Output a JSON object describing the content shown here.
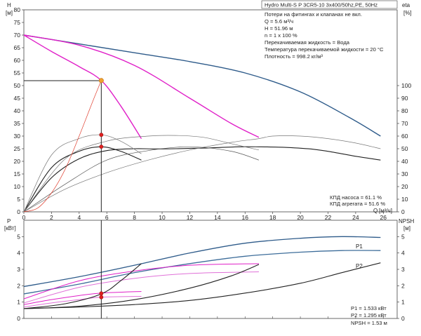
{
  "chart_data": [
    {
      "type": "line",
      "title": "Hydro Multi-S P 3CR5-10 3x400/50hz,PE, 50Hz",
      "xlabel": "Q",
      "xunit": "[м³/ч]",
      "ylabel": "H",
      "yunit": "[м]",
      "y2label": "eta",
      "y2unit": "[%]",
      "xlim": [
        0,
        27
      ],
      "ylim": [
        0,
        80
      ],
      "y2lim": [
        0,
        160
      ],
      "xticks": [
        0,
        2,
        4,
        6,
        8,
        10,
        12,
        14,
        16,
        18,
        20,
        22,
        24,
        26
      ],
      "xtick_labels": [
        "0",
        "2",
        "4",
        "6",
        "8",
        "10",
        "12",
        "14",
        "16",
        "18",
        "20",
        "22",
        "24",
        "26"
      ],
      "yticks": [
        0,
        5,
        10,
        15,
        20,
        25,
        30,
        35,
        40,
        45,
        50,
        55,
        60,
        65,
        70,
        75,
        80
      ],
      "ytick_labels": [
        "0",
        "5",
        "10",
        "15",
        "20",
        "25",
        "30",
        "35",
        "40",
        "45",
        "50",
        "55",
        "60",
        "65",
        "70",
        "75",
        "80"
      ],
      "y2ticks": [
        0,
        10,
        20,
        30,
        40,
        50,
        60,
        70,
        80,
        90,
        100
      ],
      "y2tick_labels": [
        "0",
        "10",
        "20",
        "30",
        "40",
        "50",
        "60",
        "70",
        "80",
        "90",
        "100"
      ],
      "grid": false,
      "info_lines": [
        "Потери на фитингах и клапанах не вкл.",
        "Q = 5.6 м³/ч",
        "H = 51.96 м",
        "n = 1 x 100 %",
        "Перекачиваемая жидкость = Вода",
        "Температура перекачиваемой жидкости = 20 °C",
        "Плотность = 998.2 кг/м³"
      ],
      "efficiency_labels": [
        "КПД насоса = 61.1 %",
        "КПД агрегата = 51.6 %"
      ],
      "series": [
        {
          "role": "head",
          "color": "#2e5b8a",
          "x": [
            0,
            4,
            8,
            12,
            16,
            20,
            23.5,
            25.8
          ],
          "y": [
            70,
            66.5,
            63,
            59.5,
            55,
            47.5,
            37.5,
            30
          ]
        },
        {
          "role": "head",
          "color": "#e020c8",
          "x": [
            0,
            4,
            8,
            12,
            15,
            17
          ],
          "y": [
            70,
            66,
            58,
            45,
            35,
            29.5
          ]
        },
        {
          "role": "head",
          "color": "#e020c8",
          "x": [
            0,
            2,
            4,
            5.6,
            7,
            8.5
          ],
          "y": [
            70,
            63.5,
            57.5,
            52,
            42,
            29
          ]
        },
        {
          "role": "efficiency",
          "color": "#222222",
          "x": [
            0,
            2,
            4,
            6,
            8,
            9.5,
            11,
            13,
            15.5,
            17,
            19,
            21,
            22.5,
            24,
            25.8
          ],
          "y": [
            0,
            27,
            42,
            48.5,
            50,
            49.8,
            50,
            50.5,
            51.5,
            51.5,
            51,
            49.5,
            47,
            44,
            41
          ]
        },
        {
          "role": "efficiency",
          "color": "#222222",
          "x": [
            0,
            2,
            4,
            5.6,
            7,
            8.5
          ],
          "y": [
            0,
            35,
            48,
            51.5,
            48,
            41
          ]
        },
        {
          "role": "efficiency",
          "color": "#555555",
          "x": [
            0,
            3,
            6,
            9,
            12,
            15,
            17
          ],
          "y": [
            0,
            22,
            41,
            48.5,
            51.5,
            48,
            41
          ]
        },
        {
          "role": "efficiency",
          "color": "#777777",
          "x": [
            0,
            3,
            6,
            9,
            11,
            13,
            15,
            17
          ],
          "y": [
            0,
            42,
            56,
            60,
            60.5,
            59,
            54,
            49
          ]
        },
        {
          "role": "efficiency",
          "color": "#777777",
          "x": [
            0,
            3,
            6,
            9,
            12,
            15,
            17,
            18,
            20,
            22,
            24,
            25.8
          ],
          "y": [
            0,
            18,
            31,
            41,
            49,
            55,
            58,
            60,
            60,
            58,
            54.5,
            50
          ]
        },
        {
          "role": "efficiency",
          "color": "#777777",
          "x": [
            0,
            2,
            4,
            5.6,
            7,
            8.5
          ],
          "y": [
            0,
            45,
            58,
            61,
            56,
            46
          ]
        },
        {
          "role": "system",
          "color": "#e04030",
          "x": [
            0,
            1,
            2,
            3,
            4,
            5,
            5.6
          ],
          "y": [
            0,
            1.5,
            7.5,
            17,
            30,
            44,
            52
          ]
        }
      ],
      "duty_point": {
        "q": 5.6,
        "h": 51.96,
        "eta_pump": 61.1,
        "eta_unit": 51.6
      },
      "duty_markers": [
        {
          "q": 5.6,
          "h": 52
        },
        {
          "q": 5.6,
          "h": 30.5
        },
        {
          "q": 5.6,
          "h": 25.8
        }
      ]
    },
    {
      "type": "line",
      "xlabel": "Q",
      "xlim": [
        0,
        27
      ],
      "ylabel": "P",
      "yunit": "[кВт]",
      "y2label": "NPSH",
      "y2unit": "[м]",
      "ylim": [
        0,
        6
      ],
      "y2lim": [
        0,
        6
      ],
      "yticks": [
        0,
        1,
        2,
        3,
        4,
        5
      ],
      "ytick_labels": [
        "0",
        "1",
        "2",
        "3",
        "4",
        "5"
      ],
      "y2ticks": [
        0,
        1,
        2,
        3,
        4,
        5
      ],
      "y2tick_labels": [
        "0",
        "1",
        "2",
        "3",
        "4",
        "5"
      ],
      "series_labels": [
        "P1",
        "P2"
      ],
      "values_text": [
        "P1 = 1.533 кВт",
        "P2 = 1.295 кВт",
        "NPSH = 1.53 м"
      ],
      "series": [
        {
          "name": "P1",
          "color": "#2e5b8a",
          "x": [
            0,
            4,
            8,
            12,
            16,
            20,
            23,
            25.8
          ],
          "y": [
            1.95,
            2.55,
            3.25,
            4.0,
            4.6,
            4.9,
            5.0,
            4.95
          ]
        },
        {
          "name": "P2",
          "color": "#3d6d9a",
          "x": [
            0,
            4,
            8,
            12,
            16,
            20,
            23,
            25.8
          ],
          "y": [
            1.5,
            2.1,
            2.8,
            3.35,
            3.8,
            4.05,
            4.15,
            4.15
          ]
        },
        {
          "role": "power",
          "color": "#e020c8",
          "x": [
            0,
            4,
            8,
            12,
            17
          ],
          "y": [
            1.2,
            2.3,
            2.9,
            3.25,
            3.35
          ]
        },
        {
          "role": "power",
          "color": "#e070d8",
          "x": [
            0,
            4,
            8,
            12,
            17
          ],
          "y": [
            0.95,
            1.9,
            2.45,
            2.75,
            2.85
          ]
        },
        {
          "role": "power",
          "color": "#e020c8",
          "x": [
            0,
            2,
            4,
            5.6,
            8.5
          ],
          "y": [
            0.85,
            1.15,
            1.4,
            1.55,
            1.65
          ]
        },
        {
          "role": "power",
          "color": "#e070d8",
          "x": [
            0,
            2,
            4,
            5.6,
            8.5
          ],
          "y": [
            0.7,
            0.95,
            1.15,
            1.3,
            1.35
          ]
        },
        {
          "role": "npsh",
          "color": "#222222",
          "x": [
            0,
            4,
            8,
            12,
            16,
            20,
            23,
            25.8
          ],
          "y": [
            0.6,
            0.7,
            0.85,
            1.1,
            1.55,
            2.15,
            2.8,
            3.4
          ]
        },
        {
          "role": "npsh",
          "color": "#222222",
          "x": [
            0,
            4,
            8,
            12,
            15,
            17
          ],
          "y": [
            0.6,
            0.75,
            1.15,
            1.85,
            2.6,
            3.3
          ]
        },
        {
          "role": "npsh",
          "color": "#222222",
          "x": [
            0,
            3,
            5.6,
            7,
            8.5
          ],
          "y": [
            0.6,
            0.9,
            1.5,
            2.3,
            3.35
          ]
        }
      ],
      "duty_markers": [
        {
          "q": 5.6,
          "p": 1.53
        },
        {
          "q": 5.6,
          "p": 1.3
        }
      ]
    }
  ]
}
